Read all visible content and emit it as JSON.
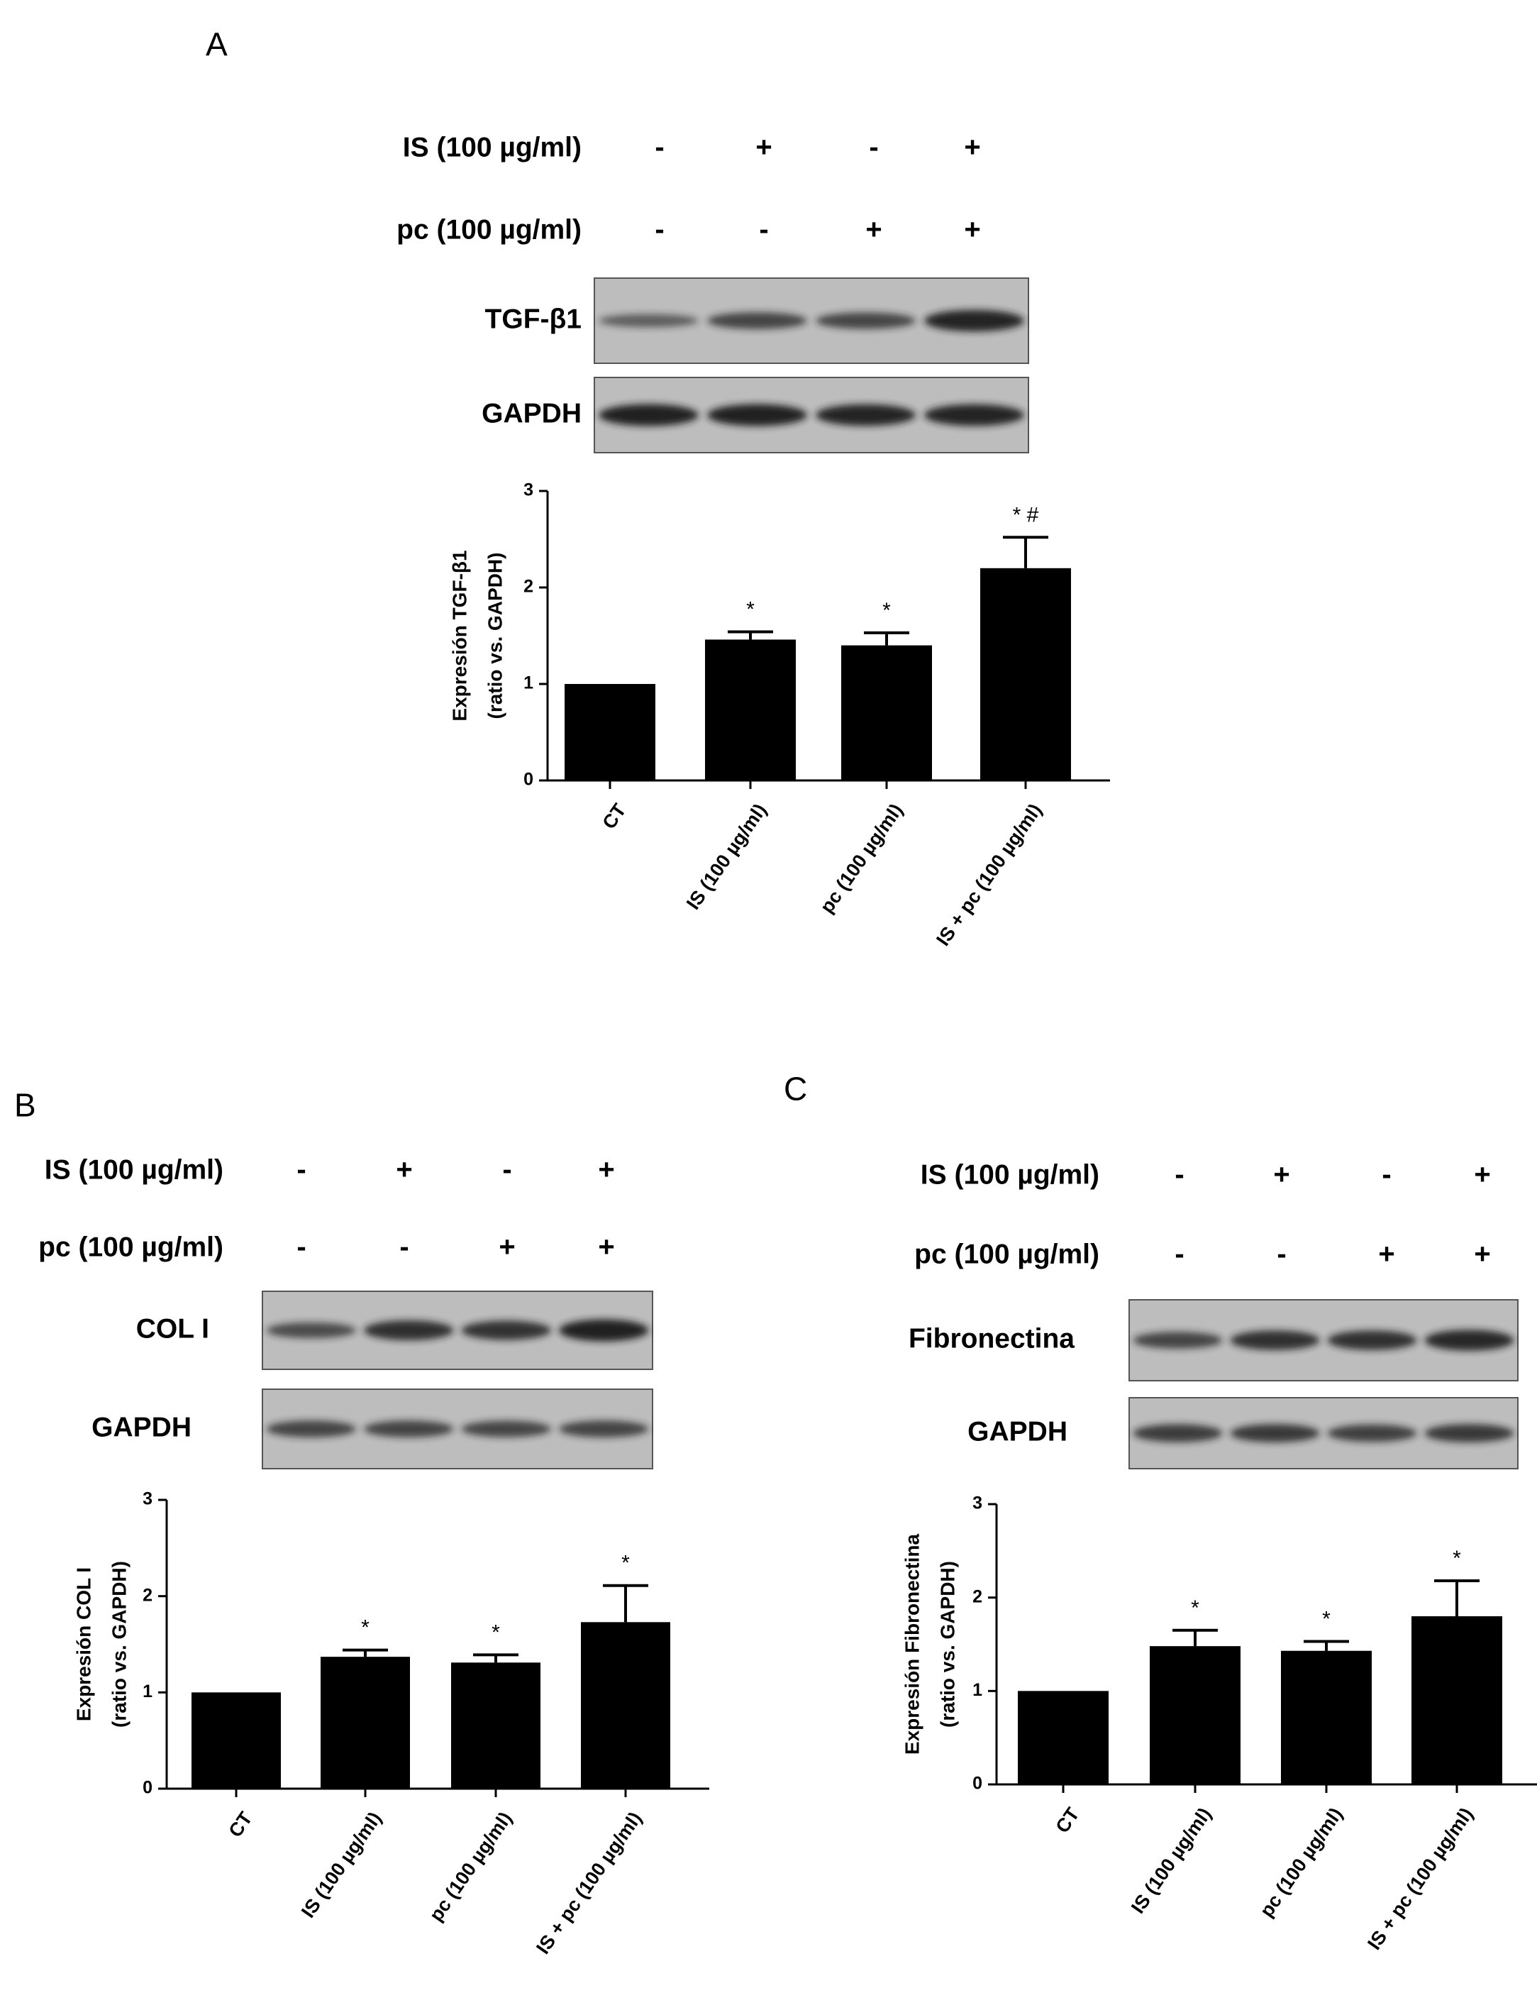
{
  "conditions": [
    "CT",
    "IS (100 µg/ml)",
    "pc (100 µg/ml)",
    "IS + pc (100 µg/ml)"
  ],
  "treatment_rows": [
    {
      "label": "IS (100 µg/ml)",
      "signs": [
        "-",
        "+",
        "-",
        "+"
      ]
    },
    {
      "label": "pc (100 µg/ml)",
      "signs": [
        "-",
        "-",
        "+",
        "+"
      ]
    }
  ],
  "chart_data": [
    {
      "panel": "A",
      "type": "bar",
      "blots": [
        {
          "label": "TGF-β1",
          "intensity": [
            0.38,
            0.62,
            0.6,
            0.92
          ]
        },
        {
          "label": "GAPDH",
          "intensity": [
            0.95,
            0.95,
            0.92,
            0.93
          ]
        }
      ],
      "ylabel_lines": [
        "Expresión TGF-β1",
        "(ratio vs. GAPDH)"
      ],
      "ylim": [
        0,
        3
      ],
      "yticks": [
        "0",
        "1",
        "2",
        "3"
      ],
      "categories": [
        "CT",
        "IS (100 µg/ml)",
        "pc (100 µg/ml)",
        "IS + pc (100 µg/ml)"
      ],
      "values": [
        1.0,
        1.46,
        1.4,
        2.2
      ],
      "errors": [
        0.0,
        0.08,
        0.13,
        0.32
      ],
      "annotations": [
        "",
        "*",
        "*",
        "* #"
      ]
    },
    {
      "panel": "B",
      "type": "bar",
      "blots": [
        {
          "label": "COL I",
          "intensity": [
            0.55,
            0.82,
            0.78,
            0.95
          ]
        },
        {
          "label": "GAPDH",
          "intensity": [
            0.62,
            0.62,
            0.6,
            0.62
          ]
        }
      ],
      "ylabel_lines": [
        "Expresión COL I",
        "(ratio vs. GAPDH)"
      ],
      "ylim": [
        0,
        3
      ],
      "yticks": [
        "0",
        "1",
        "2",
        "3"
      ],
      "categories": [
        "CT",
        "IS (100 µg/ml)",
        "pc (100 µg/ml)",
        "IS + pc (100 µg/ml)"
      ],
      "values": [
        1.0,
        1.37,
        1.31,
        1.73
      ],
      "errors": [
        0.0,
        0.07,
        0.08,
        0.38
      ],
      "annotations": [
        "",
        "*",
        "*",
        "*"
      ]
    },
    {
      "panel": "C",
      "type": "bar",
      "blots": [
        {
          "label": "Fibronectina",
          "intensity": [
            0.62,
            0.8,
            0.8,
            0.88
          ]
        },
        {
          "label": "GAPDH",
          "intensity": [
            0.7,
            0.72,
            0.66,
            0.72
          ]
        }
      ],
      "ylabel_lines": [
        "Expresión Fibronectina",
        "(ratio vs. GAPDH)"
      ],
      "ylim": [
        0,
        3
      ],
      "yticks": [
        "0",
        "1",
        "2",
        "3"
      ],
      "categories": [
        "CT",
        "IS (100 µg/ml)",
        "pc (100 µg/ml)",
        "IS + pc (100 µg/ml)"
      ],
      "values": [
        1.0,
        1.48,
        1.43,
        1.8
      ],
      "errors": [
        0.0,
        0.17,
        0.1,
        0.38
      ],
      "annotations": [
        "",
        "*",
        "*",
        "*"
      ]
    }
  ],
  "colors": {
    "bar": "#000000",
    "blot_background": "#bdbdbd",
    "band": "#1c1c1c",
    "axis": "#000000"
  }
}
